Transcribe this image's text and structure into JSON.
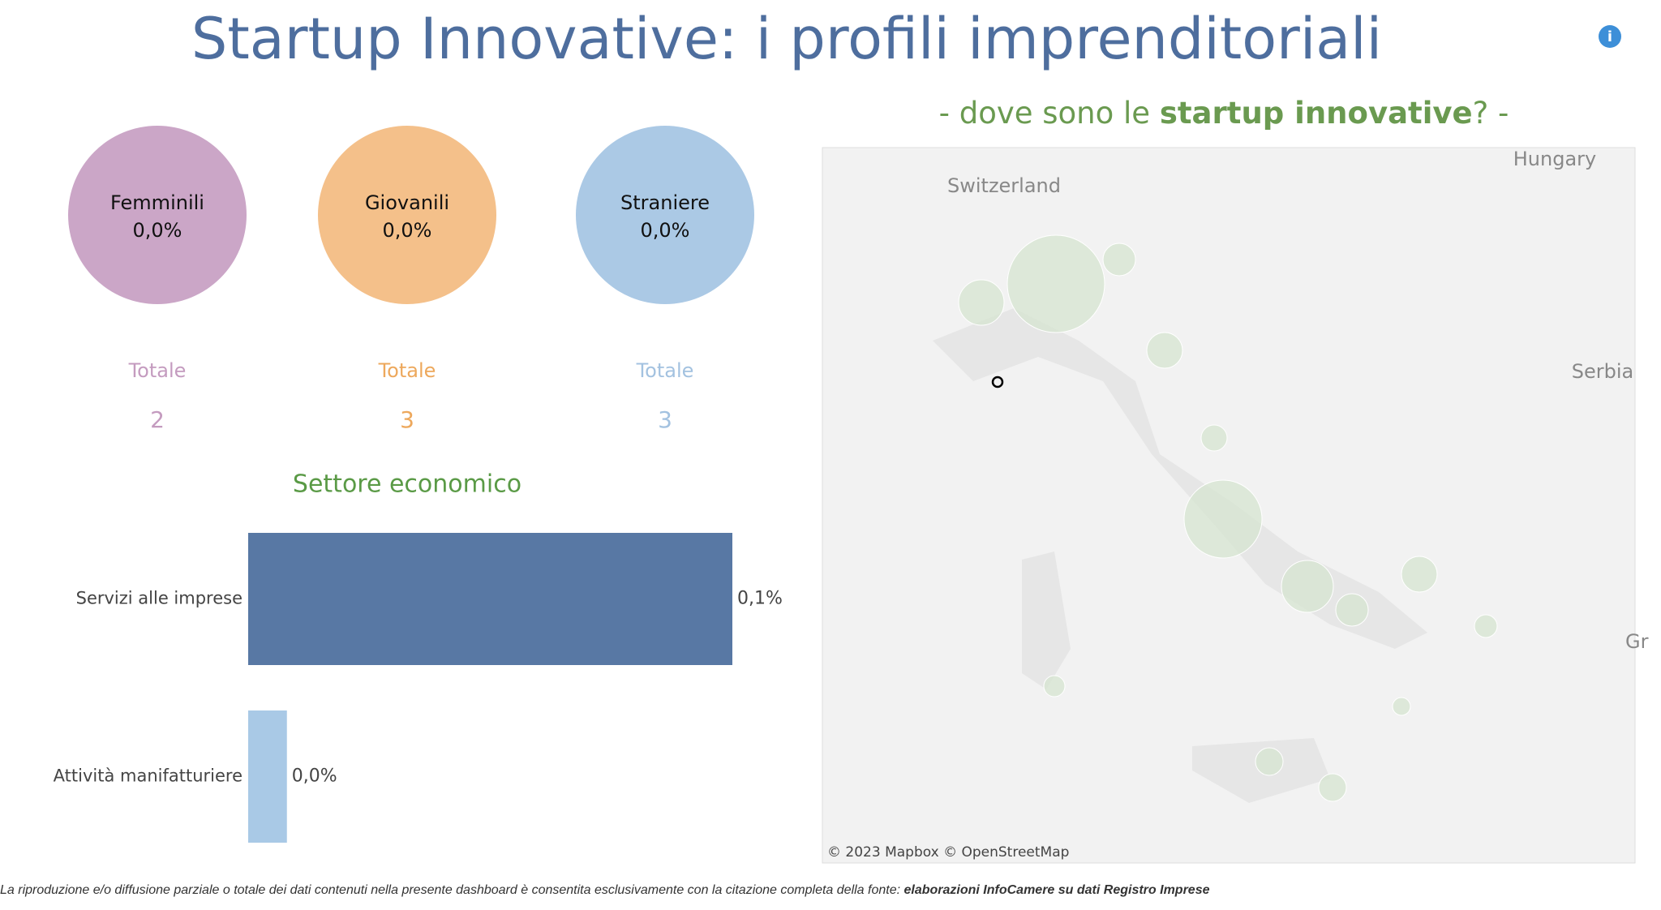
{
  "header": {
    "title": "Startup Innovative: i profili imprenditoriali"
  },
  "kpis": [
    {
      "name": "Femminili",
      "percent": "0,0%",
      "total_label": "Totale",
      "total": 2,
      "color": "#cba6c7",
      "text_color": "#c49bbf"
    },
    {
      "name": "Giovanili",
      "percent": "0,0%",
      "total_label": "Totale",
      "total": 3,
      "color": "#f4c08a",
      "text_color": "#eda85c"
    },
    {
      "name": "Straniere",
      "percent": "0,0%",
      "total_label": "Totale",
      "total": 3,
      "color": "#abc9e5",
      "text_color": "#a3c2e0"
    }
  ],
  "chart_data": {
    "type": "bar",
    "orientation": "horizontal",
    "title": "Settore economico",
    "categories": [
      "Servizi alle imprese",
      "Attività manifatturiere"
    ],
    "values": [
      0.1,
      0.008
    ],
    "value_labels": [
      "0,1%",
      "0,0%"
    ],
    "colors": [
      "#5878a4",
      "#a9c9e6"
    ],
    "xlim": [
      0,
      0.1
    ]
  },
  "map": {
    "title_parts": [
      "- dove sono le ",
      "startup innovative",
      "? -"
    ],
    "labels": [
      "Switzerland",
      "Hungary",
      "Serbia",
      "Gr"
    ],
    "attribution": "© 2023 Mapbox © OpenStreetMap"
  },
  "footer": {
    "text": "La riproduzione e/o diffusione parziale o totale dei dati contenuti nella presente dashboard è consentita esclusivamente con la citazione completa della fonte: ",
    "source": "elaborazioni InfoCamere su dati Registro Imprese"
  }
}
